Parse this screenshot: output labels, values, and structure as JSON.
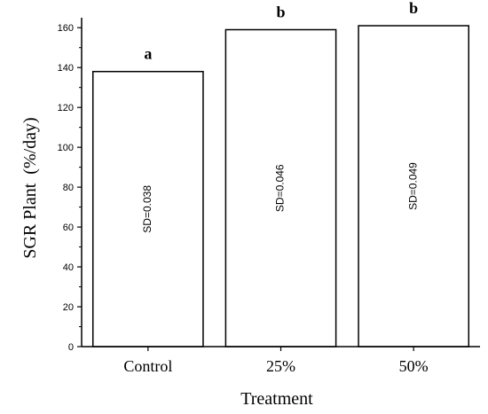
{
  "chart_data": {
    "type": "bar",
    "categories": [
      "Control",
      "25%",
      "50%"
    ],
    "values": [
      138,
      159,
      161
    ],
    "bar_labels": [
      "SD=0.038",
      "SD=0.046",
      "SD=0.049"
    ],
    "letters": [
      "a",
      "b",
      "b"
    ],
    "xlabel": "Treatment",
    "ylabel": "SGR Plant  (%/day)",
    "ylim": [
      0,
      165
    ],
    "yticks": [
      0,
      20,
      40,
      60,
      80,
      100,
      120,
      140,
      160
    ],
    "grid": false
  }
}
